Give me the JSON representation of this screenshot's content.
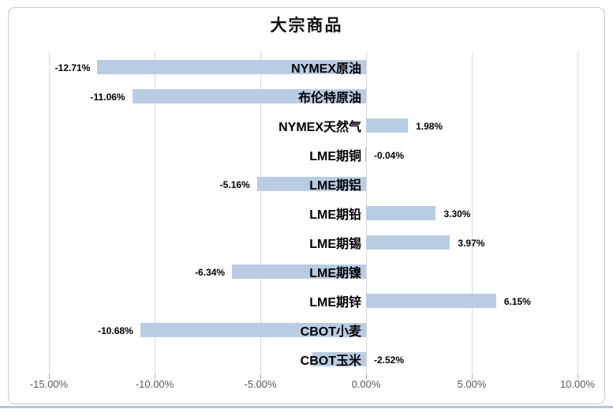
{
  "chart_data": {
    "type": "bar",
    "orientation": "horizontal",
    "title": "大宗商品",
    "categories": [
      "NYMEX原油",
      "布伦特原油",
      "NYMEX天然气",
      "LME期铜",
      "LME期铝",
      "LME期铅",
      "LME期锡",
      "LME期镍",
      "LME期锌",
      "CBOT小麦",
      "CBOT玉米"
    ],
    "values": [
      -12.71,
      -11.06,
      1.98,
      -0.04,
      -5.16,
      3.3,
      3.97,
      -6.34,
      6.15,
      -10.68,
      -2.52
    ],
    "value_labels": [
      "-12.71%",
      "-11.06%",
      "1.98%",
      "-0.04%",
      "-5.16%",
      "3.30%",
      "3.97%",
      "-6.34%",
      "6.15%",
      "-10.68%",
      "-2.52%"
    ],
    "xlabel": "",
    "ylabel": "",
    "xlim": [
      -15,
      10
    ],
    "x_ticks": [
      -15,
      -10,
      -5,
      0,
      5,
      10
    ],
    "x_tick_labels": [
      "-15.00%",
      "-10.00%",
      "-5.00%",
      "0.00%",
      "5.00%",
      "10.00%"
    ],
    "grid": "vertical",
    "legend": "none",
    "bar_color": "#b8cce4",
    "gridline_color": "#d9d9d9",
    "axis_label_color": "#595959"
  }
}
